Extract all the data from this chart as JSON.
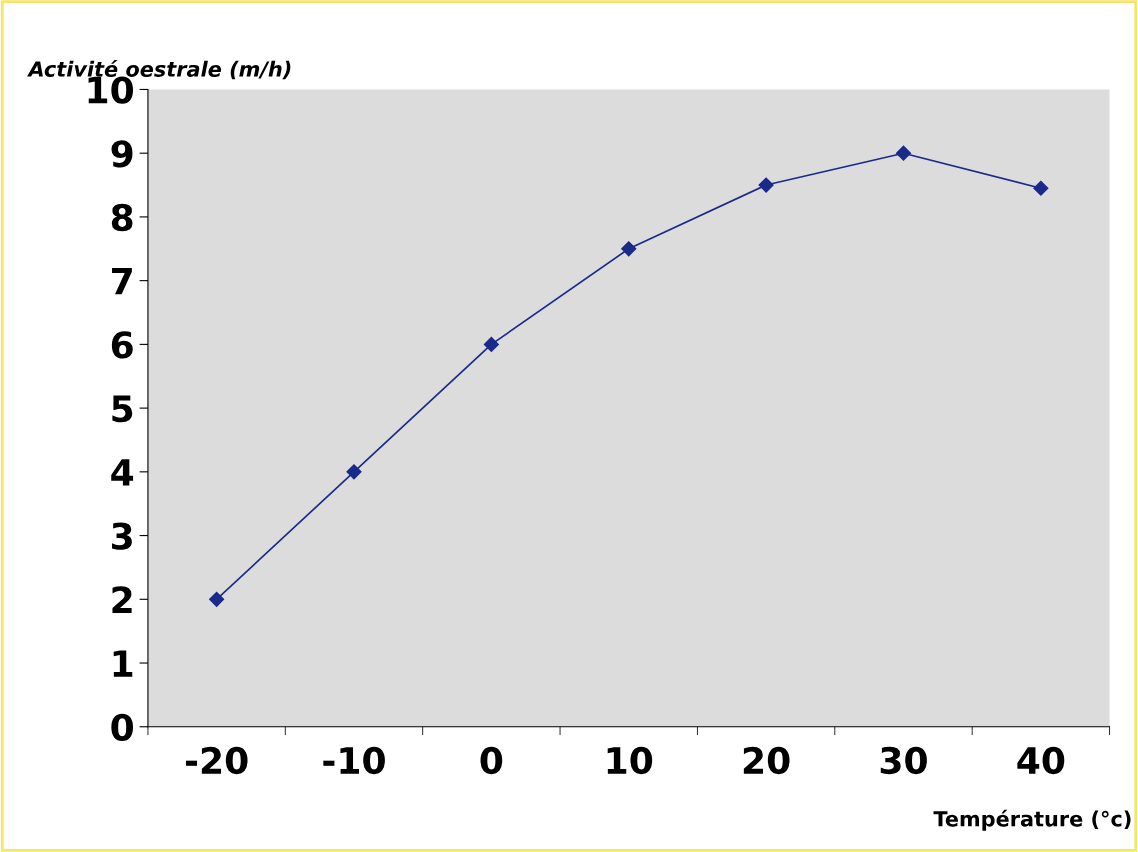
{
  "chart_data": {
    "type": "line",
    "xlabel": "Température (°c)",
    "ylabel": "Activité oestrale (m/h)",
    "categories": [
      "-20",
      "-10",
      "0",
      "10",
      "20",
      "30",
      "40"
    ],
    "series": [
      {
        "color": "#1a2a8c",
        "values": [
          2,
          4,
          6,
          7.5,
          8.5,
          9,
          8.45
        ]
      }
    ],
    "ylim": [
      0,
      10
    ],
    "yticks": [
      0,
      1,
      2,
      3,
      4,
      5,
      6,
      7,
      8,
      9,
      10
    ],
    "marker": "diamond",
    "line_style": "solid",
    "grid": false,
    "legend": false
  }
}
